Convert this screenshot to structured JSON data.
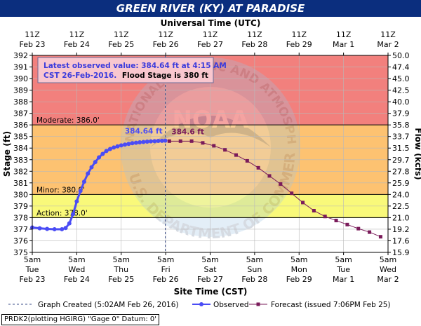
{
  "title": "GREEN RIVER (KY) AT PARADISE",
  "chart_data": {
    "type": "line",
    "top_axis_label": "Universal Time (UTC)",
    "top_ticks": [
      {
        "top": "11Z",
        "bottom": "Feb 23"
      },
      {
        "top": "11Z",
        "bottom": "Feb 24"
      },
      {
        "top": "11Z",
        "bottom": "Feb 25"
      },
      {
        "top": "11Z",
        "bottom": "Feb 26"
      },
      {
        "top": "11Z",
        "bottom": "Feb 27"
      },
      {
        "top": "11Z",
        "bottom": "Feb 28"
      },
      {
        "top": "11Z",
        "bottom": "Feb 29"
      },
      {
        "top": "11Z",
        "bottom": "Mar 1"
      },
      {
        "top": "11Z",
        "bottom": "Mar 2"
      }
    ],
    "bottom_axis_label": "Site Time (CST)",
    "bottom_ticks": [
      {
        "t": 0,
        "l1": "5am",
        "l2": "Tue",
        "l3": "Feb 23"
      },
      {
        "t": 12,
        "l1": "5am",
        "l2": "Wed",
        "l3": "Feb 24"
      },
      {
        "t": 24,
        "l1": "5am",
        "l2": "Thu",
        "l3": "Feb 25"
      },
      {
        "t": 36,
        "l1": "5am",
        "l2": "Fri",
        "l3": "Feb 26"
      },
      {
        "t": 48,
        "l1": "5am",
        "l2": "Sat",
        "l3": "Feb 27"
      },
      {
        "t": 60,
        "l1": "5am",
        "l2": "Sun",
        "l3": "Feb 28"
      },
      {
        "t": 72,
        "l1": "5am",
        "l2": "Mon",
        "l3": "Feb 29"
      },
      {
        "t": 84,
        "l1": "5am",
        "l2": "Tue",
        "l3": "Mar 1"
      },
      {
        "t": 96,
        "l1": "5am",
        "l2": "Wed",
        "l3": "Mar 2"
      }
    ],
    "ylabel": "Stage (ft)",
    "y2label": "Flow (kcfs)",
    "ylim": [
      375,
      392
    ],
    "yticks": [
      375,
      376,
      377,
      378,
      379,
      380,
      381,
      382,
      383,
      384,
      385,
      386,
      387,
      388,
      389,
      390,
      391,
      392
    ],
    "flow_ticks": [
      {
        "stage": 375,
        "label": "15.9"
      },
      {
        "stage": 376,
        "label": "17.6"
      },
      {
        "stage": 377,
        "label": "19.2"
      },
      {
        "stage": 378,
        "label": "21.0"
      },
      {
        "stage": 379,
        "label": "22.5"
      },
      {
        "stage": 380,
        "label": "24.0"
      },
      {
        "stage": 381,
        "label": "25.9"
      },
      {
        "stage": 382,
        "label": "27.8"
      },
      {
        "stage": 383,
        "label": "29.7"
      },
      {
        "stage": 384,
        "label": "31.5"
      },
      {
        "stage": 385,
        "label": "33.7"
      },
      {
        "stage": 386,
        "label": "35.8"
      },
      {
        "stage": 387,
        "label": "37.9"
      },
      {
        "stage": 388,
        "label": "40.0"
      },
      {
        "stage": 389,
        "label": "42.5"
      },
      {
        "stage": 390,
        "label": "45.0"
      },
      {
        "stage": 391,
        "label": "47.4"
      },
      {
        "stage": 392,
        "label": "50.0"
      }
    ],
    "bands": [
      {
        "from": 386,
        "to": 392,
        "color": "#f2807d"
      },
      {
        "from": 380,
        "to": 386,
        "color": "#fdc271"
      },
      {
        "from": 378,
        "to": 380,
        "color": "#f9f97a"
      },
      {
        "from": 375,
        "to": 378,
        "color": "#ffffff"
      }
    ],
    "thresholds": [
      {
        "value": 386,
        "label": "Moderate:  386.0'"
      },
      {
        "value": 380,
        "label": "Minor:  380.0'"
      },
      {
        "value": 378,
        "label": "Action:  378.0'"
      }
    ],
    "graph_created_t": 35.9,
    "series": [
      {
        "name": "Observed",
        "color": "#4a4cf5",
        "points": [
          [
            0,
            377.15
          ],
          [
            2,
            377.08
          ],
          [
            4,
            377.03
          ],
          [
            6,
            377.0
          ],
          [
            8,
            377.0
          ],
          [
            9,
            377.1
          ],
          [
            10,
            377.5
          ],
          [
            11,
            378.3
          ],
          [
            12,
            379.4
          ],
          [
            13,
            380.3
          ],
          [
            14,
            381.1
          ],
          [
            15,
            381.8
          ],
          [
            16,
            382.35
          ],
          [
            17,
            382.8
          ],
          [
            18,
            383.2
          ],
          [
            19,
            383.5
          ],
          [
            20,
            383.75
          ],
          [
            21,
            383.92
          ],
          [
            22,
            384.05
          ],
          [
            23,
            384.15
          ],
          [
            24,
            384.23
          ],
          [
            25,
            384.3
          ],
          [
            26,
            384.36
          ],
          [
            27,
            384.42
          ],
          [
            28,
            384.46
          ],
          [
            29,
            384.5
          ],
          [
            30,
            384.53
          ],
          [
            31,
            384.56
          ],
          [
            32,
            384.58
          ],
          [
            33,
            384.6
          ],
          [
            34,
            384.62
          ],
          [
            35,
            384.63
          ],
          [
            35.9,
            384.64
          ]
        ]
      },
      {
        "name": "Forecast (issued 7:06PM Feb 25)",
        "color": "#7a1b5a",
        "points": [
          [
            37,
            384.6
          ],
          [
            40,
            384.6
          ],
          [
            43,
            384.6
          ],
          [
            46,
            384.45
          ],
          [
            49,
            384.2
          ],
          [
            52,
            383.85
          ],
          [
            55,
            383.4
          ],
          [
            58,
            382.9
          ],
          [
            61,
            382.3
          ],
          [
            64,
            381.6
          ],
          [
            67,
            380.9
          ],
          [
            70,
            380.1
          ],
          [
            73,
            379.3
          ],
          [
            76,
            378.6
          ],
          [
            79,
            378.1
          ],
          [
            82,
            377.75
          ],
          [
            85,
            377.4
          ],
          [
            88,
            377.05
          ],
          [
            91,
            376.75
          ],
          [
            94,
            376.35
          ]
        ]
      }
    ],
    "point_labels": [
      {
        "text": "384.64 ft",
        "t": 35.9,
        "y": 384.64,
        "color": "#4a4cf5"
      },
      {
        "text": "384.6 ft",
        "t": 37,
        "y": 384.6,
        "color": "#7a1b5a"
      }
    ],
    "info_line1": "Latest observed value: 384.64 ft at 4:15 AM",
    "info_line2a": "CST 26-Feb-2016.",
    "info_line2b": "Flood Stage is 380 ft",
    "legend": {
      "graph_created": "Graph Created (5:02AM Feb 26, 2016)",
      "observed": "Observed",
      "forecast": "Forecast (issued 7:06PM Feb 25)"
    },
    "watermark": [
      "NATIONAL OCEANIC AND ATMOSPHERIC ADMINISTRATION",
      "NOAA",
      "U.S. DEPARTMENT OF COMMERCE"
    ]
  },
  "footer": "PRDK2(plotting HGIRG) \"Gage 0\" Datum: 0'"
}
